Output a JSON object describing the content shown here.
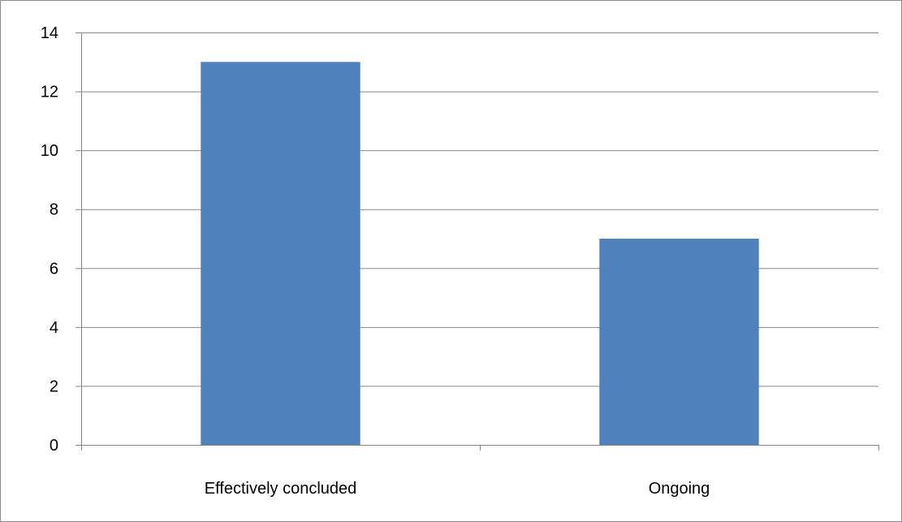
{
  "chart_data": {
    "type": "bar",
    "categories": [
      "Effectively concluded",
      "Ongoing"
    ],
    "values": [
      13,
      7
    ],
    "ylim": [
      0,
      14
    ],
    "yticks": [
      0,
      2,
      4,
      6,
      8,
      10,
      12,
      14
    ],
    "grid": true,
    "legend": "none",
    "bar_color": "#4f81bd",
    "grid_color": "#868686",
    "axis_color": "#868686"
  }
}
